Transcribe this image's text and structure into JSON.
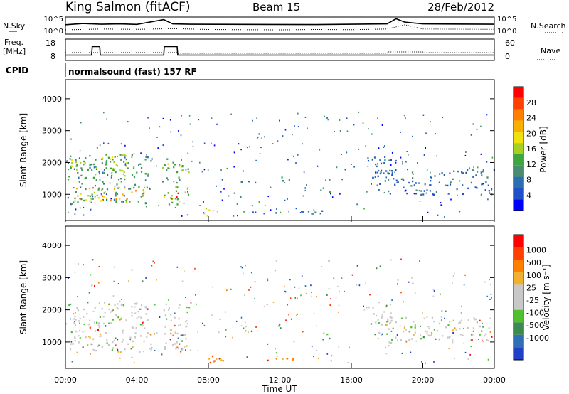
{
  "header": {
    "title": "King Salmon (fitACF)",
    "beam": "Beam 15",
    "date": "28/Feb/2012"
  },
  "chart_data": [
    {
      "type": "line",
      "panel": "noise",
      "left_label": "N.Sky",
      "right_label": "N.Search",
      "ytick_labels": [
        "10^5",
        "10^0"
      ],
      "series": [
        {
          "name": "N.Sky",
          "x": [
            "00:00",
            "01:00",
            "02:00",
            "03:00",
            "04:00",
            "05:30",
            "06:00",
            "07:00",
            "10:00",
            "14:00",
            "18:00",
            "18:30",
            "19:00",
            "20:00",
            "24:00"
          ],
          "y": [
            0.55,
            0.62,
            0.58,
            0.6,
            0.57,
            0.85,
            0.6,
            0.58,
            0.57,
            0.56,
            0.6,
            0.9,
            0.7,
            0.6,
            0.58
          ]
        },
        {
          "name": "N.Search",
          "x": [
            "00:00",
            "02:00",
            "04:00",
            "06:00",
            "08:00",
            "10:00",
            "12:00",
            "14:00",
            "16:00",
            "18:00",
            "19:00",
            "20:00",
            "24:00"
          ],
          "y": [
            0.25,
            0.3,
            0.28,
            0.32,
            0.27,
            0.26,
            0.25,
            0.27,
            0.26,
            0.3,
            0.55,
            0.3,
            0.28
          ]
        }
      ]
    },
    {
      "type": "line",
      "panel": "frequency",
      "left_label": "Freq.",
      "left_unit": "[MHz]",
      "right_label": "Nave",
      "left_ticks": [
        "18",
        "8"
      ],
      "right_ticks": [
        "60",
        "0"
      ],
      "series": [
        {
          "name": "Freq.",
          "x": [
            "00:00",
            "01:28",
            "01:30",
            "01:55",
            "01:57",
            "05:30",
            "05:32",
            "06:15",
            "06:17",
            "24:00"
          ],
          "y": [
            10.5,
            10.5,
            14.5,
            14.5,
            10.5,
            10.5,
            14.5,
            14.5,
            10.5,
            10.5
          ]
        },
        {
          "name": "Nave",
          "x": [
            "00:00",
            "06:15",
            "06:17",
            "18:00",
            "18:02",
            "20:00",
            "20:02",
            "24:00"
          ],
          "y": [
            22,
            22,
            20,
            20,
            24,
            24,
            22,
            22
          ]
        }
      ]
    },
    {
      "type": "table",
      "panel": "cpid",
      "label": "CPID",
      "value": "normalsound (fast) 157 RF"
    },
    {
      "type": "heatmap",
      "panel": "power",
      "ylabel": "Slant Range [km]",
      "yticks": [
        "1000",
        "2000",
        "3000",
        "4000"
      ],
      "ylim": [
        180,
        4600
      ],
      "xlim_hours": [
        0,
        24
      ],
      "colorbar": {
        "label": "Power [dB]",
        "tick_labels": [
          "4",
          "8",
          "12",
          "16",
          "20",
          "24",
          "28"
        ],
        "colors": [
          "#0000ff",
          "#2050c8",
          "#2a6fb0",
          "#4a8c70",
          "#3fa540",
          "#a8d020",
          "#f0e010",
          "#f8b000",
          "#ff8000",
          "#ff4000",
          "#ff0000"
        ]
      },
      "regions": [
        {
          "t0": 0.1,
          "t1": 4.8,
          "r0": 700,
          "r1": 2300,
          "level": 0.35
        },
        {
          "t0": 0.2,
          "t1": 4.5,
          "r0": 800,
          "r1": 1250,
          "level": 0.65
        },
        {
          "t0": 0.3,
          "t1": 3.5,
          "r0": 1600,
          "r1": 2300,
          "level": 0.45
        },
        {
          "t0": 5.4,
          "t1": 7.0,
          "r0": 700,
          "r1": 2200,
          "level": 0.45
        },
        {
          "t0": 5.8,
          "t1": 6.3,
          "r0": 800,
          "r1": 1100,
          "level": 0.9
        },
        {
          "t0": 7.5,
          "t1": 8.5,
          "r0": 350,
          "r1": 600,
          "level": 0.6
        },
        {
          "t0": 8.0,
          "t1": 15.0,
          "r0": 420,
          "r1": 520,
          "level": 0.25
        },
        {
          "t0": 9.8,
          "t1": 10.7,
          "r0": 1300,
          "r1": 1550,
          "level": 0.3
        },
        {
          "t0": 11.8,
          "t1": 12.5,
          "r0": 1400,
          "r1": 1600,
          "level": 0.3
        },
        {
          "t0": 14.0,
          "t1": 14.8,
          "r0": 1100,
          "r1": 1300,
          "level": 0.3
        },
        {
          "t0": 17.3,
          "t1": 24.0,
          "r0": 1000,
          "r1": 1800,
          "level": 0.22
        },
        {
          "t0": 16.8,
          "t1": 18.3,
          "r0": 1500,
          "r1": 2200,
          "level": 0.2
        }
      ]
    },
    {
      "type": "heatmap",
      "panel": "velocity",
      "ylabel": "Slant Range [km]",
      "xlabel": "Time UT",
      "yticks": [
        "1000",
        "2000",
        "3000",
        "4000"
      ],
      "ylim": [
        180,
        4600
      ],
      "xlim_hours": [
        0,
        24
      ],
      "xtick_labels": [
        "00:00",
        "04:00",
        "08:00",
        "12:00",
        "16:00",
        "20:00",
        "00:00"
      ],
      "colorbar": {
        "label": "Velocity [m s⁻¹]",
        "tick_labels": [
          "1000",
          "500",
          "100",
          "25",
          "-25",
          "-100",
          "-500",
          "-1000"
        ],
        "colors": [
          "#2040c8",
          "#2e6fb5",
          "#3b8a50",
          "#50c030",
          "#c8c8c8",
          "#c8c8c8",
          "#f0b030",
          "#ff8000",
          "#ff4000",
          "#ff0000"
        ]
      },
      "regions": [
        {
          "t0": 0.1,
          "t1": 4.8,
          "r0": 700,
          "r1": 2300,
          "level": 0.5
        },
        {
          "t0": 5.4,
          "t1": 7.0,
          "r0": 700,
          "r1": 2200,
          "level": 0.5
        },
        {
          "t0": 5.7,
          "t1": 6.5,
          "r0": 600,
          "r1": 1300,
          "level": 0.85
        },
        {
          "t0": 7.5,
          "t1": 8.5,
          "r0": 350,
          "r1": 600,
          "level": 0.75
        },
        {
          "t0": 8.0,
          "t1": 15.0,
          "r0": 420,
          "r1": 520,
          "level": 0.65
        },
        {
          "t0": 9.8,
          "t1": 10.7,
          "r0": 1300,
          "r1": 1550,
          "level": 0.3
        },
        {
          "t0": 11.8,
          "t1": 12.5,
          "r0": 1400,
          "r1": 1600,
          "level": 0.3
        },
        {
          "t0": 14.0,
          "t1": 14.8,
          "r0": 1100,
          "r1": 1300,
          "level": 0.3
        },
        {
          "t0": 17.3,
          "t1": 24.0,
          "r0": 1000,
          "r1": 1800,
          "level": 0.5
        },
        {
          "t0": 16.8,
          "t1": 18.3,
          "r0": 1500,
          "r1": 2200,
          "level": 0.5
        }
      ]
    }
  ]
}
